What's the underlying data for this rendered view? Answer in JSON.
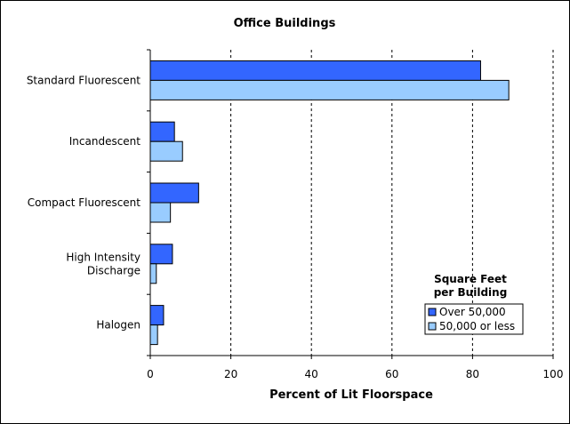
{
  "chart_data": {
    "type": "bar",
    "orientation": "horizontal",
    "title": "Office Buildings",
    "xlabel": "Percent of Lit Floorspace",
    "ylabel": "",
    "xlim": [
      0,
      100
    ],
    "xticks": [
      0,
      20,
      40,
      60,
      80,
      100
    ],
    "grid": "vertical dashed",
    "categories": [
      [
        "Standard Fluorescent"
      ],
      [
        "Incandescent"
      ],
      [
        "Compact Fluorescent"
      ],
      [
        "High Intensity",
        "Discharge"
      ],
      [
        "Halogen"
      ]
    ],
    "series": [
      {
        "name": "Over 50,000",
        "color": "#3366ff",
        "values": [
          82,
          6,
          12,
          5.5,
          3.3
        ]
      },
      {
        "name": "50,000 or less",
        "color": "#99ccff",
        "values": [
          89,
          8,
          5,
          1.5,
          1.8
        ]
      }
    ],
    "legend": {
      "title": [
        "Square Feet",
        "per Building"
      ],
      "placement": "bottom-right"
    }
  }
}
